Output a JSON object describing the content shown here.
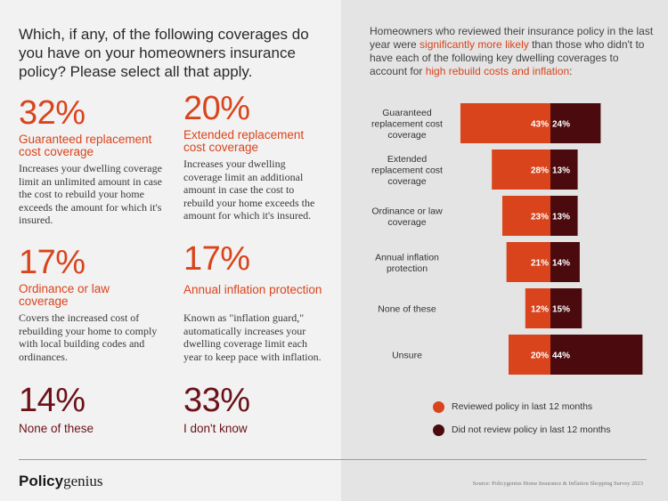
{
  "question": "Which, if any, of the following coverages do you have on your homeowners insurance policy? Please select all that apply.",
  "stats": [
    {
      "pct": "32%",
      "label": "Guaranteed replacement cost coverage",
      "desc": "Increases your dwelling coverage limit an unlimited amount in case the cost to rebuild your home exceeds the amount for which it's insured.",
      "tone": "orange"
    },
    {
      "pct": "20%",
      "label": "Extended replacement cost coverage",
      "desc": "Increases your dwelling coverage limit an additional amount in case the cost to rebuild your home exceeds the amount for which it's insured.",
      "tone": "orange"
    },
    {
      "pct": "17%",
      "label": "Ordinance or law coverage",
      "desc": "Covers the increased cost of rebuilding your home to comply with local building codes and ordinances.",
      "tone": "orange"
    },
    {
      "pct": "17%",
      "label": "Annual inflation protection",
      "desc": "Known as \"inflation guard,\" automatically increases your dwelling coverage limit each year to keep pace with inflation.",
      "tone": "orange"
    },
    {
      "pct": "14%",
      "label": "None of these",
      "desc": "",
      "tone": "dark"
    },
    {
      "pct": "33%",
      "label": "I don't know",
      "desc": "",
      "tone": "dark"
    }
  ],
  "intro": {
    "part1": "Homeowners who reviewed their insurance policy in the last year were ",
    "highlight1": "significantly more likely",
    "part2": " than those who didn't to have each of the following key dwelling coverages to account for ",
    "highlight2": "high rebuild costs and inflation",
    "part3": ":"
  },
  "colors": {
    "orange": "#d9441c",
    "dark": "#4a0a0e"
  },
  "chart_data": {
    "type": "bar",
    "orientation": "horizontal-diverging",
    "categories": [
      "Guaranteed replacement cost coverage",
      "Extended replacement cost coverage",
      "Ordinance or law coverage",
      "Annual inflation protection",
      "None of these",
      "Unsure"
    ],
    "series": [
      {
        "name": "Reviewed policy in last 12 months",
        "values": [
          43,
          28,
          23,
          21,
          12,
          20
        ],
        "labels": [
          "43%",
          "28%",
          "23%",
          "21%",
          "12%",
          "20%"
        ],
        "color": "#d9441c"
      },
      {
        "name": "Did not review policy in last 12 months",
        "values": [
          24,
          13,
          13,
          14,
          15,
          44
        ],
        "labels": [
          "24%",
          "13%",
          "13%",
          "14%",
          "15%",
          "44%"
        ],
        "color": "#4a0a0e"
      }
    ]
  },
  "footer": {
    "logo_bold": "Policy",
    "logo_light": "genius",
    "source": "Source: Policygenius Home Insurance & Inflation Shopping Survey 2023"
  }
}
